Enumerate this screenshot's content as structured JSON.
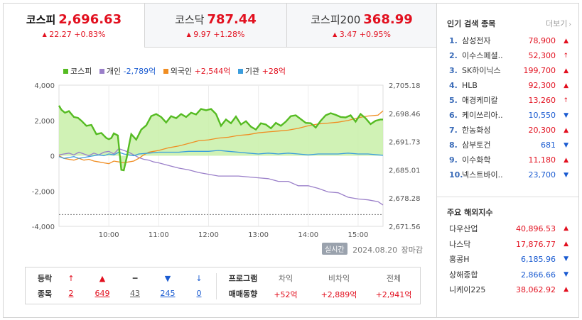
{
  "tabs": [
    {
      "name": "코스피",
      "value": "2,696.63",
      "change": "22.27",
      "pct": "+0.83%",
      "active": true
    },
    {
      "name": "코스닥",
      "value": "787.44",
      "change": "9.97",
      "pct": "+1.28%",
      "active": false
    },
    {
      "name": "코스피200",
      "value": "368.99",
      "change": "3.47",
      "pct": "+0.95%",
      "active": false
    }
  ],
  "legend": {
    "kospi": "코스피",
    "individual_label": "개인",
    "individual_value": "-2,789억",
    "foreign_label": "외국인",
    "foreign_value": "+2,544억",
    "institution_label": "기관",
    "institution_value": "+28억"
  },
  "colors": {
    "up": "#e2101f",
    "down": "#1a5bd1",
    "kospi": "#55bb22",
    "kospi_fill": "#c8f0a8",
    "individual": "#9a7fc9",
    "foreign": "#f08d22",
    "institution": "#3b9ddd"
  },
  "chart_data": {
    "type": "line",
    "x_ticks": [
      "10:00",
      "11:00",
      "12:00",
      "13:00",
      "14:00",
      "15:00"
    ],
    "y_left_ticks": [
      "4,000",
      "2,000",
      "0",
      "-2,000",
      "-4,000"
    ],
    "y_left_range": [
      -4000,
      4000
    ],
    "y_right_ticks": [
      "2,705.18",
      "2,698.46",
      "2,691.73",
      "2,685.01",
      "2,678.28",
      "2,671.56"
    ],
    "y_right_range": [
      2671.56,
      2705.18
    ],
    "x_range": [
      9.0,
      15.5
    ],
    "reference_right": 2674.36,
    "series": [
      {
        "name": "코스피",
        "axis": "right",
        "x": [
          9.0,
          9.05,
          9.12,
          9.2,
          9.3,
          9.38,
          9.45,
          9.55,
          9.65,
          9.75,
          9.85,
          9.95,
          10.0,
          10.05,
          10.1,
          10.18,
          10.25,
          10.3,
          10.36,
          10.4,
          10.45,
          10.55,
          10.65,
          10.75,
          10.85,
          10.95,
          11.05,
          11.15,
          11.25,
          11.35,
          11.45,
          11.55,
          11.65,
          11.75,
          11.85,
          11.95,
          12.05,
          12.15,
          12.25,
          12.35,
          12.45,
          12.55,
          12.65,
          12.75,
          12.85,
          12.95,
          13.05,
          13.15,
          13.25,
          13.35,
          13.45,
          13.55,
          13.65,
          13.75,
          13.85,
          13.95,
          14.05,
          14.15,
          14.25,
          14.35,
          14.45,
          14.55,
          14.65,
          14.75,
          14.85,
          14.95,
          15.05,
          15.15,
          15.25,
          15.35,
          15.45,
          15.5
        ],
        "y": [
          2700.3,
          2699.3,
          2698.6,
          2699.0,
          2697.6,
          2697.4,
          2696.7,
          2695.5,
          2695.7,
          2693.5,
          2693.8,
          2692.6,
          2692.3,
          2692.6,
          2693.7,
          2693.2,
          2685.0,
          2684.9,
          2688.0,
          2690.6,
          2693.5,
          2692.2,
          2694.6,
          2695.6,
          2697.8,
          2698.3,
          2697.6,
          2696.3,
          2697.8,
          2697.3,
          2698.3,
          2697.6,
          2698.6,
          2698.2,
          2699.5,
          2699.2,
          2699.5,
          2698.3,
          2695.5,
          2697.0,
          2696.1,
          2697.7,
          2695.8,
          2696.6,
          2695.3,
          2694.6,
          2696.1,
          2695.8,
          2694.9,
          2696.2,
          2695.5,
          2696.5,
          2697.8,
          2698.0,
          2697.1,
          2696.2,
          2696.1,
          2695.1,
          2696.7,
          2698.0,
          2698.5,
          2698.1,
          2697.6,
          2697.5,
          2698.0,
          2696.5,
          2698.3,
          2697.3,
          2695.9,
          2696.7,
          2697.0,
          2697.0
        ]
      },
      {
        "name": "개인",
        "axis": "left",
        "x": [
          9.0,
          9.1,
          9.2,
          9.3,
          9.4,
          9.5,
          9.6,
          9.7,
          9.8,
          9.9,
          10.0,
          10.1,
          10.2,
          10.3,
          10.4,
          10.5,
          10.6,
          10.7,
          10.8,
          10.9,
          11.0,
          11.2,
          11.4,
          11.6,
          11.8,
          12.0,
          12.2,
          12.4,
          12.6,
          12.8,
          13.0,
          13.2,
          13.4,
          13.6,
          13.8,
          14.0,
          14.2,
          14.4,
          14.6,
          14.8,
          15.0,
          15.2,
          15.4,
          15.5
        ],
        "y": [
          50,
          100,
          150,
          50,
          200,
          100,
          0,
          150,
          50,
          200,
          250,
          100,
          400,
          300,
          200,
          50,
          -100,
          -200,
          -250,
          -350,
          -400,
          -550,
          -700,
          -800,
          -950,
          -1050,
          -1150,
          -1150,
          -1150,
          -1200,
          -1250,
          -1300,
          -1450,
          -1450,
          -1700,
          -1700,
          -1850,
          -2050,
          -2100,
          -2350,
          -2450,
          -2500,
          -2600,
          -2789
        ]
      },
      {
        "name": "외국인",
        "axis": "left",
        "x": [
          9.0,
          9.1,
          9.2,
          9.3,
          9.4,
          9.5,
          9.6,
          9.7,
          9.8,
          9.9,
          10.0,
          10.1,
          10.2,
          10.3,
          10.4,
          10.5,
          10.6,
          10.7,
          10.8,
          10.9,
          11.0,
          11.2,
          11.4,
          11.6,
          11.8,
          12.0,
          12.2,
          12.4,
          12.6,
          12.8,
          13.0,
          13.2,
          13.4,
          13.6,
          13.8,
          14.0,
          14.2,
          14.4,
          14.6,
          14.8,
          15.0,
          15.2,
          15.4,
          15.5
        ],
        "y": [
          0,
          -150,
          -200,
          -250,
          -150,
          -250,
          -200,
          -300,
          -350,
          -400,
          -450,
          -300,
          -350,
          -400,
          -350,
          -300,
          -150,
          50,
          200,
          250,
          300,
          450,
          550,
          700,
          850,
          900,
          1000,
          1050,
          1150,
          1200,
          1300,
          1350,
          1400,
          1450,
          1550,
          1700,
          1800,
          1850,
          1900,
          2000,
          2150,
          2250,
          2300,
          2544
        ]
      },
      {
        "name": "기관",
        "axis": "left",
        "x": [
          9.0,
          9.1,
          9.2,
          9.3,
          9.4,
          9.5,
          9.6,
          9.7,
          9.8,
          9.9,
          10.0,
          10.1,
          10.2,
          10.3,
          10.4,
          10.5,
          10.6,
          10.8,
          11.0,
          11.2,
          11.4,
          11.6,
          11.8,
          12.0,
          12.2,
          12.4,
          12.6,
          12.8,
          13.0,
          13.2,
          13.4,
          13.6,
          13.8,
          14.0,
          14.2,
          14.4,
          14.6,
          14.8,
          15.0,
          15.2,
          15.4,
          15.5
        ],
        "y": [
          -50,
          -150,
          -100,
          -50,
          -150,
          -100,
          -50,
          0,
          50,
          0,
          100,
          50,
          200,
          100,
          50,
          0,
          100,
          150,
          200,
          200,
          200,
          250,
          250,
          250,
          300,
          250,
          200,
          150,
          100,
          150,
          100,
          150,
          100,
          50,
          100,
          100,
          100,
          150,
          100,
          100,
          50,
          28
        ]
      }
    ]
  },
  "status": {
    "badge": "실시간",
    "date": "2024.08.20",
    "state": "장마감"
  },
  "breadth": {
    "label_top": "등락",
    "label_bottom": "종목",
    "items": [
      {
        "icon": "↑",
        "count": "2",
        "tone": "up"
      },
      {
        "icon": "▲",
        "count": "649",
        "tone": "up"
      },
      {
        "icon": "━",
        "count": "43",
        "tone": "flat"
      },
      {
        "icon": "▼",
        "count": "245",
        "tone": "down"
      },
      {
        "icon": "↓",
        "count": "0",
        "tone": "down"
      }
    ]
  },
  "program": {
    "label_top": "프로그램",
    "label_bottom": "매매동향",
    "columns": [
      {
        "head": "차익",
        "value": "+52억"
      },
      {
        "head": "비차익",
        "value": "+2,889억"
      },
      {
        "head": "전체",
        "value": "+2,941억"
      }
    ]
  },
  "popular": {
    "title": "인기 검색 종목",
    "more": "더보기",
    "items": [
      {
        "rank": "1.",
        "name": "삼성전자",
        "price": "78,900",
        "icon": "▲",
        "tone": "up"
      },
      {
        "rank": "2.",
        "name": "이수스페셜..",
        "price": "52,300",
        "icon": "↑",
        "tone": "up"
      },
      {
        "rank": "3.",
        "name": "SK하이닉스",
        "price": "199,700",
        "icon": "▲",
        "tone": "up"
      },
      {
        "rank": "4.",
        "name": "HLB",
        "price": "92,300",
        "icon": "▲",
        "tone": "up"
      },
      {
        "rank": "5.",
        "name": "애경케미칼",
        "price": "13,260",
        "icon": "↑",
        "tone": "up"
      },
      {
        "rank": "6.",
        "name": "케이쓰리아..",
        "price": "10,550",
        "icon": "▼",
        "tone": "down"
      },
      {
        "rank": "7.",
        "name": "한농화성",
        "price": "20,300",
        "icon": "▲",
        "tone": "up"
      },
      {
        "rank": "8.",
        "name": "삼부토건",
        "price": "681",
        "icon": "▼",
        "tone": "down"
      },
      {
        "rank": "9.",
        "name": "이수화학",
        "price": "11,180",
        "icon": "▲",
        "tone": "up"
      },
      {
        "rank": "10.",
        "name": "넥스트바이..",
        "price": "23,700",
        "icon": "▼",
        "tone": "down"
      }
    ]
  },
  "overseas": {
    "title": "주요 해외지수",
    "items": [
      {
        "name": "다우산업",
        "value": "40,896.53",
        "icon": "▲",
        "tone": "up"
      },
      {
        "name": "나스닥",
        "value": "17,876.77",
        "icon": "▲",
        "tone": "up"
      },
      {
        "name": "홍콩H",
        "value": "6,185.96",
        "icon": "▼",
        "tone": "down"
      },
      {
        "name": "상해종합",
        "value": "2,866.66",
        "icon": "▼",
        "tone": "down"
      },
      {
        "name": "니케이225",
        "value": "38,062.92",
        "icon": "▲",
        "tone": "up"
      }
    ]
  }
}
